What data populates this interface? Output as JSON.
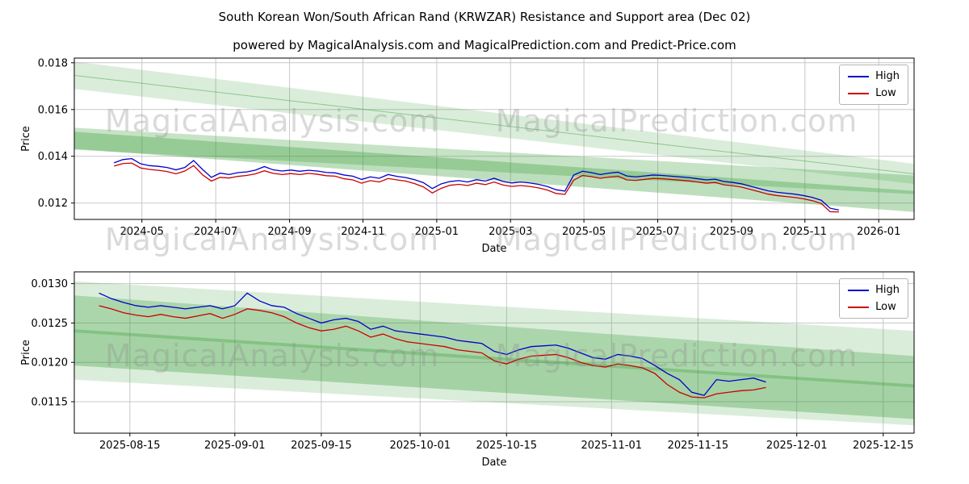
{
  "figure": {
    "title": "South Korean Won/South African Rand  (KRWZAR) Resistance and Support area (Dec 02)",
    "subtitle": "powered by MagicalAnalysis.com and MagicalPrediction.com and Predict-Price.com"
  },
  "watermarks": {
    "analysis": "MagicalAnalysis.com",
    "prediction": "MagicalPrediction.com"
  },
  "colors": {
    "high": "#0000cc",
    "low": "#cc0000",
    "band": "#339933",
    "grid": "#c8c8c8",
    "spine": "#000000"
  },
  "chart_data": [
    {
      "type": "line",
      "title": "",
      "xlabel": "Date",
      "ylabel": "Price",
      "xlim": [
        2024.18,
        2026.08
      ],
      "ylim": [
        0.0113,
        0.0182
      ],
      "grid": true,
      "legend_position": "upper right",
      "xticks": [
        {
          "v": 2024.333,
          "label": "2024-05"
        },
        {
          "v": 2024.5,
          "label": "2024-07"
        },
        {
          "v": 2024.667,
          "label": "2024-09"
        },
        {
          "v": 2024.833,
          "label": "2024-11"
        },
        {
          "v": 2025.0,
          "label": "2025-01"
        },
        {
          "v": 2025.167,
          "label": "2025-03"
        },
        {
          "v": 2025.333,
          "label": "2025-05"
        },
        {
          "v": 2025.5,
          "label": "2025-07"
        },
        {
          "v": 2025.667,
          "label": "2025-09"
        },
        {
          "v": 2025.833,
          "label": "2025-11"
        },
        {
          "v": 2026.0,
          "label": "2026-01"
        }
      ],
      "yticks": [
        {
          "v": 0.012,
          "label": "0.012"
        },
        {
          "v": 0.014,
          "label": "0.014"
        },
        {
          "v": 0.016,
          "label": "0.016"
        },
        {
          "v": 0.018,
          "label": "0.018"
        }
      ],
      "x": [
        2024.27,
        2024.29,
        2024.31,
        2024.33,
        2024.35,
        2024.37,
        2024.39,
        2024.41,
        2024.43,
        2024.45,
        2024.47,
        2024.49,
        2024.51,
        2024.53,
        2024.55,
        2024.57,
        2024.59,
        2024.61,
        2024.63,
        2024.65,
        2024.67,
        2024.69,
        2024.71,
        2024.73,
        2024.75,
        2024.77,
        2024.79,
        2024.81,
        2024.83,
        2024.85,
        2024.87,
        2024.89,
        2024.91,
        2024.93,
        2024.95,
        2024.97,
        2024.99,
        2025.01,
        2025.03,
        2025.05,
        2025.07,
        2025.09,
        2025.11,
        2025.13,
        2025.15,
        2025.17,
        2025.19,
        2025.21,
        2025.23,
        2025.25,
        2025.27,
        2025.29,
        2025.31,
        2025.33,
        2025.35,
        2025.37,
        2025.39,
        2025.41,
        2025.43,
        2025.45,
        2025.47,
        2025.49,
        2025.51,
        2025.53,
        2025.55,
        2025.57,
        2025.59,
        2025.61,
        2025.63,
        2025.65,
        2025.67,
        2025.69,
        2025.71,
        2025.73,
        2025.75,
        2025.77,
        2025.79,
        2025.81,
        2025.83,
        2025.85,
        2025.87,
        2025.89,
        2025.91
      ],
      "series": [
        {
          "name": "High",
          "color": "#0000cc",
          "values": [
            0.01372,
            0.01386,
            0.0139,
            0.01368,
            0.0136,
            0.01357,
            0.01352,
            0.01342,
            0.01352,
            0.01382,
            0.01344,
            0.0131,
            0.01328,
            0.01322,
            0.0133,
            0.01333,
            0.01341,
            0.01356,
            0.01342,
            0.01337,
            0.01341,
            0.01336,
            0.0134,
            0.01337,
            0.01331,
            0.01329,
            0.0132,
            0.01315,
            0.01301,
            0.01312,
            0.01306,
            0.01322,
            0.01314,
            0.01309,
            0.013,
            0.01287,
            0.01262,
            0.01282,
            0.01292,
            0.01296,
            0.0129,
            0.013,
            0.01294,
            0.01306,
            0.01292,
            0.01286,
            0.0129,
            0.01286,
            0.0128,
            0.01271,
            0.01257,
            0.01251,
            0.0132,
            0.01336,
            0.0133,
            0.01322,
            0.01328,
            0.01332,
            0.01316,
            0.01312,
            0.01316,
            0.0132,
            0.01318,
            0.01315,
            0.01312,
            0.01309,
            0.01304,
            0.01299,
            0.01302,
            0.01292,
            0.01288,
            0.01282,
            0.01272,
            0.01262,
            0.01252,
            0.01246,
            0.01242,
            0.01238,
            0.01232,
            0.01224,
            0.01212,
            0.01178,
            0.0117
          ]
        },
        {
          "name": "Low",
          "color": "#cc0000",
          "values": [
            0.01358,
            0.01369,
            0.01371,
            0.0135,
            0.01344,
            0.0134,
            0.01335,
            0.01325,
            0.01337,
            0.0136,
            0.01321,
            0.01294,
            0.0131,
            0.01307,
            0.01314,
            0.01318,
            0.01325,
            0.01338,
            0.01327,
            0.01322,
            0.01326,
            0.01322,
            0.01327,
            0.01323,
            0.01317,
            0.01315,
            0.01304,
            0.01299,
            0.01285,
            0.01296,
            0.0129,
            0.01305,
            0.01299,
            0.01294,
            0.01283,
            0.01269,
            0.01243,
            0.01263,
            0.01276,
            0.0128,
            0.01275,
            0.01285,
            0.01279,
            0.0129,
            0.01277,
            0.01271,
            0.01275,
            0.01271,
            0.01265,
            0.01256,
            0.01241,
            0.01237,
            0.01298,
            0.01318,
            0.01313,
            0.01306,
            0.01311,
            0.01315,
            0.01299,
            0.01297,
            0.01301,
            0.01305,
            0.01304,
            0.01301,
            0.01298,
            0.01295,
            0.0129,
            0.01285,
            0.01288,
            0.01278,
            0.01274,
            0.01268,
            0.01258,
            0.01248,
            0.01238,
            0.01232,
            0.01228,
            0.01224,
            0.01218,
            0.0121,
            0.01198,
            0.01163,
            0.01162
          ]
        }
      ],
      "bands": [
        {
          "alpha": 0.18,
          "x": [
            2024.18,
            2026.08
          ],
          "top": [
            0.01805,
            0.01368
          ],
          "bottom": [
            0.01688,
            0.01282
          ]
        },
        {
          "alpha": 0.28,
          "x": [
            2024.18,
            2026.08
          ],
          "top": [
            0.01522,
            0.01318
          ],
          "bottom": [
            0.01428,
            0.01238
          ]
        },
        {
          "alpha": 0.32,
          "x": [
            2024.18,
            2026.08
          ],
          "top": [
            0.01505,
            0.01252
          ],
          "bottom": [
            0.01432,
            0.01162
          ]
        }
      ],
      "center_line": {
        "x": [
          2024.18,
          2026.08
        ],
        "y": [
          0.01746,
          0.01325
        ]
      }
    },
    {
      "type": "line",
      "title": "",
      "xlabel": "Date",
      "ylabel": "Price",
      "xlim": [
        5,
        141
      ],
      "ylim": [
        0.0111,
        0.01315
      ],
      "grid": true,
      "legend_position": "upper right",
      "xticks": [
        {
          "v": 14,
          "label": "2025-08-15"
        },
        {
          "v": 31,
          "label": "2025-09-01"
        },
        {
          "v": 45,
          "label": "2025-09-15"
        },
        {
          "v": 61,
          "label": "2025-10-01"
        },
        {
          "v": 75,
          "label": "2025-10-15"
        },
        {
          "v": 92,
          "label": "2025-11-01"
        },
        {
          "v": 106,
          "label": "2025-11-15"
        },
        {
          "v": 122,
          "label": "2025-12-01"
        },
        {
          "v": 136,
          "label": "2025-12-15"
        }
      ],
      "yticks": [
        {
          "v": 0.0115,
          "label": "0.0115"
        },
        {
          "v": 0.012,
          "label": "0.0120"
        },
        {
          "v": 0.0125,
          "label": "0.0125"
        },
        {
          "v": 0.013,
          "label": "0.0130"
        }
      ],
      "x": [
        9,
        11,
        13,
        15,
        17,
        19,
        21,
        23,
        25,
        27,
        29,
        31,
        33,
        35,
        37,
        39,
        41,
        43,
        45,
        47,
        49,
        51,
        53,
        55,
        57,
        59,
        61,
        63,
        65,
        67,
        69,
        71,
        73,
        75,
        77,
        79,
        81,
        83,
        85,
        87,
        89,
        91,
        93,
        95,
        97,
        99,
        101,
        103,
        105,
        107,
        109,
        111,
        113,
        115,
        117
      ],
      "series": [
        {
          "name": "High",
          "color": "#0000cc",
          "values": [
            0.01288,
            0.01281,
            0.01276,
            0.01272,
            0.0127,
            0.01272,
            0.0127,
            0.01268,
            0.0127,
            0.01272,
            0.01268,
            0.01272,
            0.01288,
            0.01278,
            0.01272,
            0.0127,
            0.01262,
            0.01256,
            0.0125,
            0.01254,
            0.01256,
            0.01252,
            0.01242,
            0.01246,
            0.0124,
            0.01238,
            0.01236,
            0.01234,
            0.01232,
            0.01228,
            0.01226,
            0.01224,
            0.01214,
            0.0121,
            0.01216,
            0.0122,
            0.01221,
            0.01222,
            0.01218,
            0.01212,
            0.01206,
            0.01204,
            0.0121,
            0.01208,
            0.01205,
            0.01196,
            0.01186,
            0.01178,
            0.01162,
            0.01158,
            0.01178,
            0.01176,
            0.01178,
            0.0118,
            0.01175
          ]
        },
        {
          "name": "Low",
          "color": "#cc0000",
          "values": [
            0.01272,
            0.01268,
            0.01263,
            0.0126,
            0.01258,
            0.01261,
            0.01258,
            0.01256,
            0.01259,
            0.01262,
            0.01256,
            0.01261,
            0.01268,
            0.01266,
            0.01263,
            0.01258,
            0.0125,
            0.01244,
            0.0124,
            0.01242,
            0.01246,
            0.0124,
            0.01232,
            0.01236,
            0.0123,
            0.01226,
            0.01224,
            0.01222,
            0.0122,
            0.01216,
            0.01214,
            0.01212,
            0.01202,
            0.01198,
            0.01204,
            0.01208,
            0.01209,
            0.0121,
            0.01206,
            0.012,
            0.01196,
            0.01194,
            0.01198,
            0.01196,
            0.01193,
            0.01186,
            0.01172,
            0.01162,
            0.01156,
            0.01155,
            0.0116,
            0.01162,
            0.01164,
            0.01165,
            0.01168
          ]
        }
      ],
      "bands": [
        {
          "alpha": 0.18,
          "x": [
            5,
            141
          ],
          "top": [
            0.01303,
            0.0124
          ],
          "bottom": [
            0.01178,
            0.0112
          ]
        },
        {
          "alpha": 0.28,
          "x": [
            5,
            141
          ],
          "top": [
            0.01285,
            0.01208
          ],
          "bottom": [
            0.01238,
            0.01168
          ]
        },
        {
          "alpha": 0.32,
          "x": [
            5,
            141
          ],
          "top": [
            0.01242,
            0.01172
          ],
          "bottom": [
            0.01196,
            0.01128
          ]
        }
      ]
    }
  ]
}
